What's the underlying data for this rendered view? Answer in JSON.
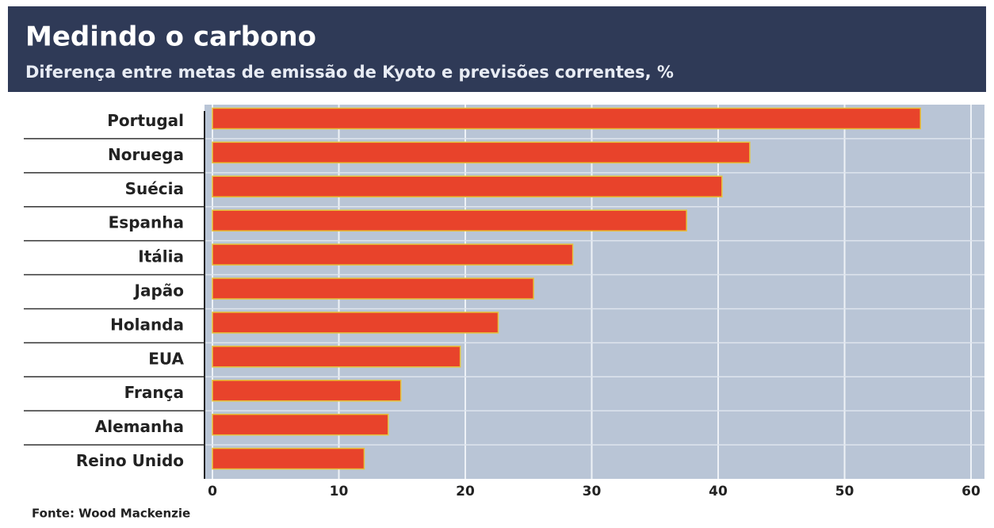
{
  "chart_data": {
    "type": "barh",
    "title": "Medindo o carbono",
    "subtitle": "Diferença entre metas de emissão de Kyoto e previsões correntes, %",
    "source": "Fonte: Wood Mackenzie",
    "categories": [
      "Portugal",
      "Noruega",
      "Suécia",
      "Espanha",
      "Itália",
      "Japão",
      "Holanda",
      "EUA",
      "França",
      "Alemanha",
      "Reino Unido"
    ],
    "values": [
      56,
      42.5,
      40.3,
      37.5,
      28.5,
      25.4,
      22.6,
      19.6,
      14.9,
      13.9,
      12
    ],
    "color": "#e8432b",
    "xlim": [
      0,
      60
    ],
    "xticks": [
      0,
      10,
      20,
      30,
      40,
      50,
      60
    ],
    "grid": true
  }
}
